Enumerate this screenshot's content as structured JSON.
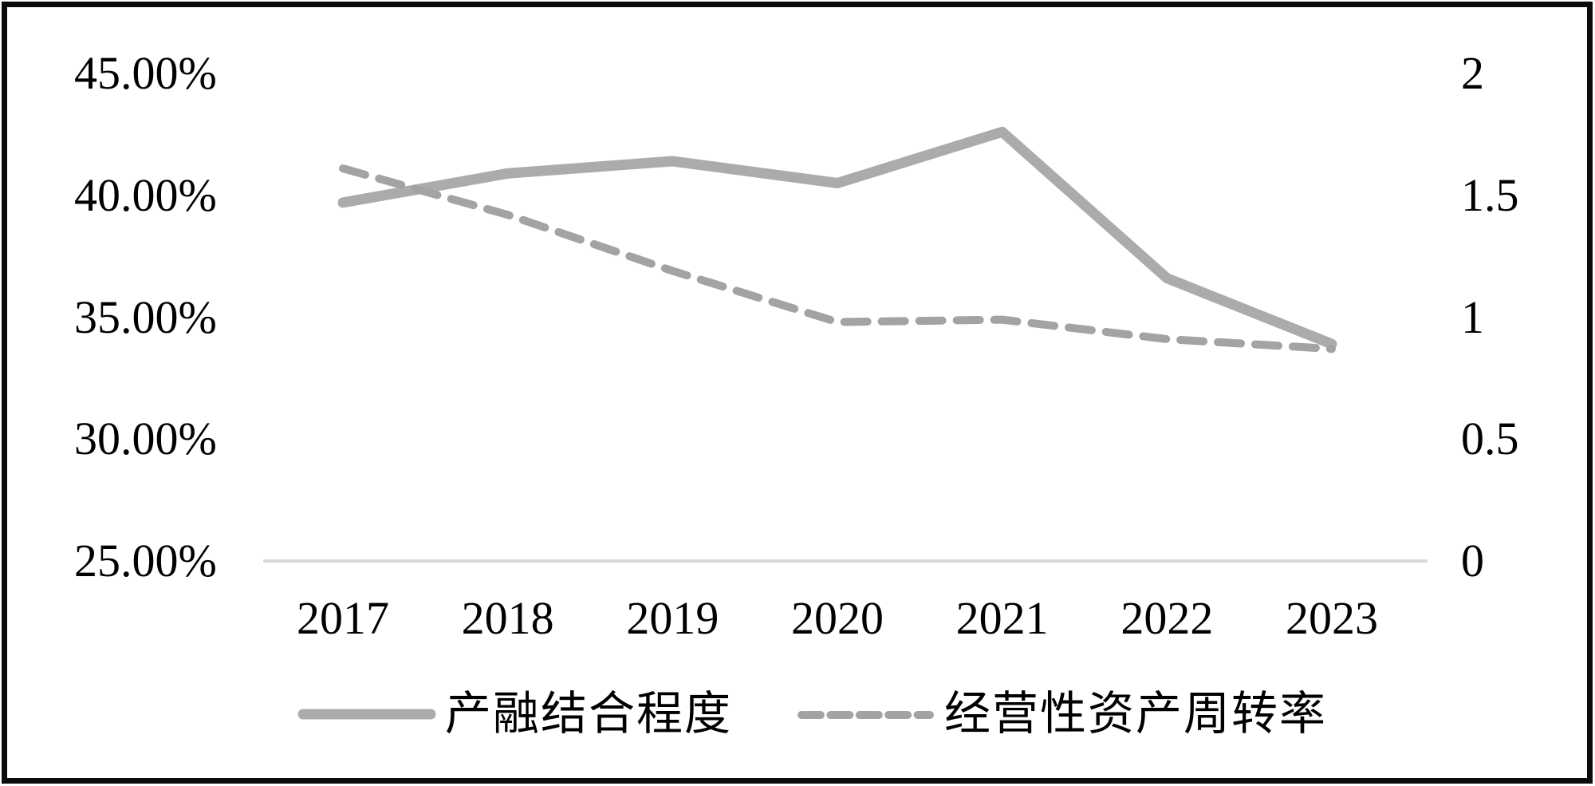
{
  "chart_data": {
    "type": "line",
    "title": "",
    "categories": [
      "2017",
      "2018",
      "2019",
      "2020",
      "2021",
      "2022",
      "2023"
    ],
    "series": [
      {
        "name": "产融结合程度",
        "axis": "left",
        "unit": "%",
        "line_style": "solid",
        "color": "#ababab",
        "values": [
          39.7,
          40.9,
          41.4,
          40.5,
          42.6,
          36.6,
          33.9
        ]
      },
      {
        "name": "经营性资产周转率",
        "axis": "right",
        "unit": "",
        "line_style": "dashed",
        "color": "#a3a3a3",
        "values": [
          1.61,
          1.42,
          1.19,
          0.98,
          0.99,
          0.91,
          0.87
        ]
      }
    ],
    "left_axis": {
      "ticks": [
        "45.00%",
        "40.00%",
        "35.00%",
        "30.00%",
        "25.00%"
      ],
      "min": 25,
      "max": 45
    },
    "right_axis": {
      "ticks": [
        "2",
        "1.5",
        "1",
        "0.5",
        "0"
      ],
      "min": 0,
      "max": 2
    },
    "x_axis": {
      "labels": [
        "2017",
        "2018",
        "2019",
        "2020",
        "2021",
        "2022",
        "2023"
      ]
    },
    "grid": "off",
    "legend_position": "bottom",
    "axis_line_color": "#d9d9d9",
    "frame_color": "#0b0b0b",
    "background_color": "#ffffff",
    "text_color": "#000000"
  }
}
